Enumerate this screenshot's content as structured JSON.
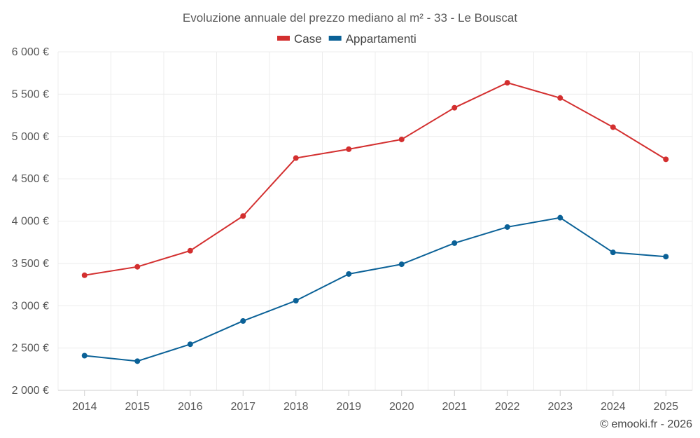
{
  "chart_data": {
    "type": "line",
    "title": "Evoluzione annuale del prezzo mediano al m² - 33 - Le Bouscat",
    "categories": [
      "2014",
      "2015",
      "2016",
      "2017",
      "2018",
      "2019",
      "2020",
      "2021",
      "2022",
      "2023",
      "2024",
      "2025"
    ],
    "series": [
      {
        "name": "Case",
        "color": "#d32f2f",
        "values": [
          3360,
          3460,
          3650,
          4060,
          4745,
          4850,
          4965,
          5340,
          5635,
          5455,
          5110,
          4730
        ]
      },
      {
        "name": "Appartamenti",
        "color": "#0a6197",
        "values": [
          2410,
          2345,
          2545,
          2820,
          3060,
          3375,
          3490,
          3740,
          3930,
          4040,
          3630,
          3580
        ]
      }
    ],
    "ylim": [
      2000,
      6000
    ],
    "yticks": [
      2000,
      2500,
      3000,
      3500,
      4000,
      4500,
      5000,
      5500,
      6000
    ],
    "ytick_labels": [
      "2 000 €",
      "2 500 €",
      "3 000 €",
      "3 500 €",
      "4 000 €",
      "4 500 €",
      "5 000 €",
      "5 500 €",
      "6 000 €"
    ],
    "xlabel": "",
    "ylabel": "",
    "grid": true,
    "legend_position": "top-center"
  },
  "credit": "© emooki.fr - 2026"
}
